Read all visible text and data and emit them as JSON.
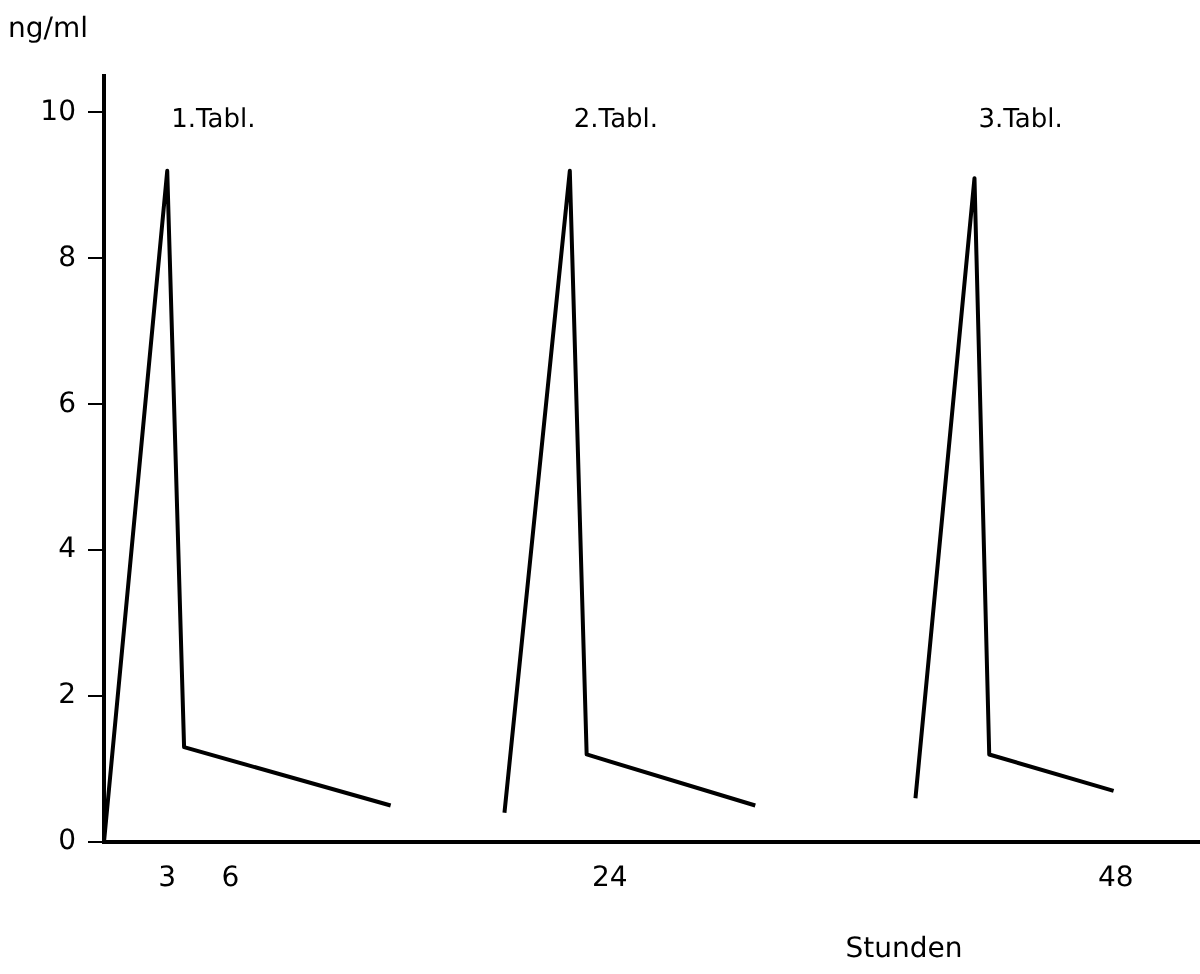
{
  "chart_data": {
    "type": "line",
    "ylabel": "ng/ml",
    "xlabel": "Stunden",
    "xlim": [
      0,
      52
    ],
    "ylim": [
      0,
      10.5
    ],
    "xticks": [
      3,
      6,
      24,
      48
    ],
    "yticks": [
      0,
      2,
      4,
      6,
      8,
      10
    ],
    "series": [
      {
        "color": "#000000",
        "x": [
          0,
          3,
          3.8,
          13.6
        ],
        "values": [
          0,
          9.2,
          1.3,
          0.5
        ]
      },
      {
        "color": "#000000",
        "x": [
          19,
          22.1,
          22.9,
          30.9
        ],
        "values": [
          0.4,
          9.2,
          1.2,
          0.5
        ]
      },
      {
        "color": "#000000",
        "x": [
          38.5,
          41.3,
          42,
          47.9
        ],
        "values": [
          0.6,
          9.1,
          1.2,
          0.7
        ]
      }
    ],
    "annotations": [
      "1.Tabl.",
      "2.Tabl.",
      "3.Tabl."
    ],
    "grid": false,
    "legend": false,
    "marker": "none",
    "line_style": "solid"
  }
}
